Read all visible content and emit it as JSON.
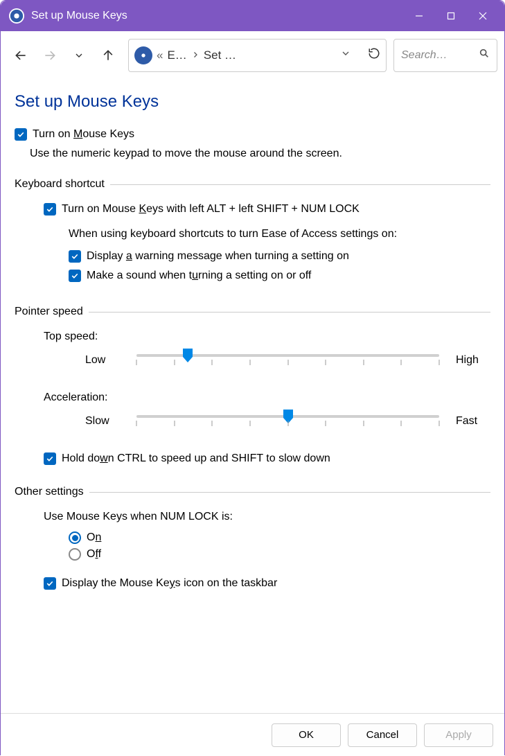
{
  "window": {
    "title": "Set up Mouse Keys"
  },
  "breadcrumb": {
    "part1": "E…",
    "part2": "Set …",
    "chevrons": "«"
  },
  "search": {
    "placeholder": "Search…"
  },
  "page": {
    "title": "Set up Mouse Keys"
  },
  "main_checkbox": {
    "label_pre": "Turn on ",
    "label_u": "M",
    "label_post": "ouse Keys",
    "checked": true
  },
  "description": "Use the numeric keypad to move the mouse around the screen.",
  "groups": {
    "keyboard_shortcut": {
      "title": "Keyboard shortcut",
      "enable": {
        "checked": true,
        "pre": "Turn on Mouse ",
        "u": "K",
        "post": "eys with left ALT + left SHIFT + NUM LOCK"
      },
      "intro": "When using keyboard shortcuts to turn Ease of Access settings on:",
      "warning": {
        "checked": true,
        "pre": "Display ",
        "u": "a",
        "post": " warning message when turning a setting on"
      },
      "sound": {
        "checked": true,
        "pre": "Make a sound when t",
        "u": "u",
        "post": "rning a setting on or off"
      }
    },
    "pointer_speed": {
      "title": "Pointer speed",
      "top_speed": {
        "label": "Top speed:",
        "low": "Low",
        "high": "High",
        "value_percent": 17,
        "ticks": 9
      },
      "acceleration": {
        "label": "Acceleration:",
        "low": "Slow",
        "high": "Fast",
        "value_percent": 50,
        "ticks": 9
      },
      "ctrl_shift": {
        "checked": true,
        "pre": "Hold do",
        "u": "w",
        "post": "n CTRL to speed up and SHIFT to slow down"
      }
    },
    "other": {
      "title": "Other settings",
      "numlock_label": "Use Mouse Keys when NUM LOCK is:",
      "radio_on": {
        "u": "n",
        "pre": "O",
        "post": "",
        "selected": true
      },
      "radio_off": {
        "u": "f",
        "pre": "O",
        "post": "f",
        "selected": false
      },
      "taskbar": {
        "checked": true,
        "pre": "Display the Mouse Ke",
        "u": "y",
        "post": "s icon on the taskbar"
      }
    }
  },
  "buttons": {
    "ok": "OK",
    "cancel": "Cancel",
    "apply": "Apply"
  },
  "colors": {
    "accent": "#0067c0",
    "titlebar": "#7e57c2",
    "title_text": "#003399"
  }
}
